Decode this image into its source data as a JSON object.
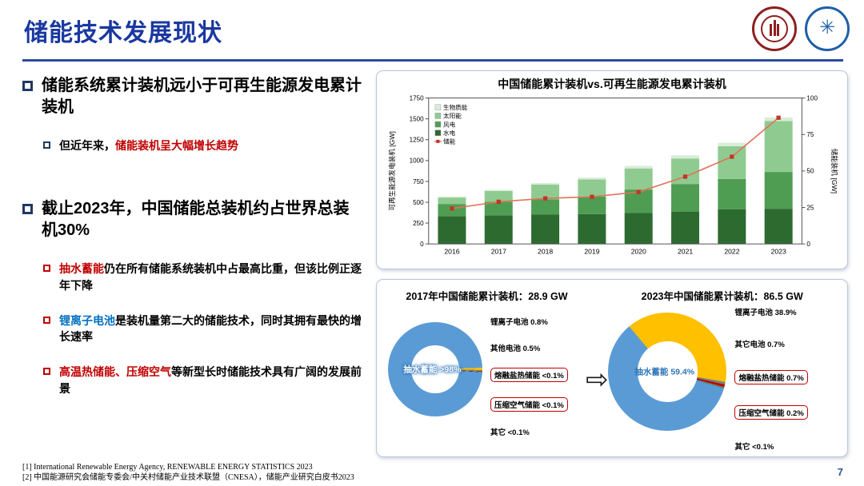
{
  "slide": {
    "title": "储能技术发展现状",
    "page_number": "7",
    "footnotes": [
      "[1] International Renewable Energy Agency, RENEWABLE ENERGY STATISTICS 2023",
      "[2] 中国能源研究会储能专委会/中关村储能产业技术联盟（CNESA），储能产业研究白皮书2023"
    ],
    "logos": {
      "left": "PEKING UNIVERSITY 1898",
      "right": "华中科技大学"
    },
    "colors": {
      "title": "#1a38a0",
      "accent_red": "#c00000",
      "accent_blue": "#0070c0",
      "page_number": "#2e5496",
      "panel_border": "#b9c6dd"
    }
  },
  "bullets": [
    {
      "level": 1,
      "marker_color": "#1f3864",
      "segments": [
        {
          "text": "储能系统累计装机远小于可再生能源发电累计装机",
          "color": "#000000"
        }
      ]
    },
    {
      "level": 2,
      "marker_color": "#1f3864",
      "segments": [
        {
          "text": "但近年来，",
          "color": "#000000"
        },
        {
          "text": "储能装机呈大幅增长趋势",
          "color": "#c00000"
        }
      ]
    },
    {
      "level": 1,
      "marker_color": "#1f3864",
      "gap_before": true,
      "segments": [
        {
          "text": "截止2023年，中国储能总装机约占世界总装机30%",
          "color": "#000000"
        }
      ]
    },
    {
      "level": 2,
      "marker_color": "#c00000",
      "segments": [
        {
          "text": "抽水蓄能",
          "color": "#c00000"
        },
        {
          "text": "仍在所有储能系统装机中占最高比重，但该比例正逐年下降",
          "color": "#000000"
        }
      ]
    },
    {
      "level": 2,
      "marker_color": "#c00000",
      "segments": [
        {
          "text": "锂离子电池",
          "color": "#0070c0"
        },
        {
          "text": "是装机量第二大的储能技术，同时其拥有最快的增长速率",
          "color": "#000000"
        }
      ]
    },
    {
      "level": 2,
      "marker_color": "#c00000",
      "segments": [
        {
          "text": "高温热储能、压缩空气",
          "color": "#c00000"
        },
        {
          "text": "等新型长时储能技术具有广阔的发展前景",
          "color": "#000000"
        }
      ]
    }
  ],
  "donut_section": {
    "arrow_icon": "⇨"
  },
  "chart_data": [
    {
      "type": "bar",
      "title": "中国储能累计装机vs.可再生能源发电累计装机",
      "categories": [
        "2016",
        "2017",
        "2018",
        "2019",
        "2020",
        "2021",
        "2022",
        "2023"
      ],
      "stacked_series": [
        {
          "name": "水电",
          "color": "#2d6a30",
          "values": [
            332,
            341,
            352,
            358,
            370,
            391,
            414,
            422
          ]
        },
        {
          "name": "风电",
          "color": "#4f9d53",
          "values": [
            147,
            164,
            184,
            210,
            282,
            328,
            365,
            441
          ]
        },
        {
          "name": "太阳能",
          "color": "#8fcb90",
          "values": [
            77,
            130,
            175,
            205,
            253,
            306,
            393,
            610
          ]
        },
        {
          "name": "生物质能",
          "color": "#d8ecd8",
          "values": [
            12,
            15,
            18,
            23,
            30,
            38,
            41,
            44
          ]
        }
      ],
      "line_series": {
        "name": "储能",
        "color": "#e0745a",
        "marker_color": "#c23528",
        "values": [
          24.3,
          28.9,
          31.2,
          32.3,
          35.6,
          46.1,
          59.8,
          86.5
        ],
        "axis": "right"
      },
      "left_axis": {
        "label": "可再生能源发电装机 [GW]",
        "min": 0,
        "max": 1750,
        "ticks": [
          0,
          250,
          500,
          750,
          1000,
          1250,
          1500,
          1750
        ]
      },
      "right_axis": {
        "label": "储能装机 [GW]",
        "min": 0,
        "max": 100,
        "ticks": [
          0,
          25,
          50,
          75,
          100
        ]
      },
      "legend_order": [
        "生物质能",
        "太阳能",
        "风电",
        "水电",
        "储能"
      ],
      "grid": false,
      "legend_position": "top-left"
    },
    {
      "type": "pie",
      "title": "2017年中国储能累计装机：28.9 GW",
      "center_label": "抽水蓄能 >98%",
      "center_label_color": "#ffffff",
      "center_label_on_ring": true,
      "start_deg": 88,
      "slices": [
        {
          "name": "抽水蓄能",
          "value": 98.0,
          "display": ">98%",
          "color": "#5b9bd5"
        },
        {
          "name": "锂离子电池",
          "value": 0.8,
          "display": "0.8%",
          "color": "#ffc000"
        },
        {
          "name": "其他电池",
          "value": 0.5,
          "display": "0.5%",
          "color": "#7f7f7f"
        },
        {
          "name": "熔融盐热储能",
          "value": 0.1,
          "display": "<0.1%",
          "color": "#c00000",
          "highlight": true
        },
        {
          "name": "压缩空气储能",
          "value": 0.1,
          "display": "<0.1%",
          "color": "#70ad47",
          "highlight": true
        },
        {
          "name": "其它",
          "value": 0.1,
          "display": "<0.1%",
          "color": "#264478"
        }
      ]
    },
    {
      "type": "pie",
      "title": "2023年中国储能累计装机：86.5 GW",
      "center_label": "抽水蓄能 59.4%",
      "center_label_color": "#2e75b6",
      "center_label_on_ring": false,
      "start_deg": 320,
      "slices": [
        {
          "name": "抽水蓄能",
          "value": 59.4,
          "display": "59.4%",
          "color": "#5b9bd5"
        },
        {
          "name": "锂离子电池",
          "value": 38.9,
          "display": "38.9%",
          "color": "#ffc000"
        },
        {
          "name": "其它电池",
          "value": 0.7,
          "display": "0.7%",
          "color": "#7f7f7f"
        },
        {
          "name": "熔融盐热储能",
          "value": 0.7,
          "display": "0.7%",
          "color": "#c00000",
          "highlight": true
        },
        {
          "name": "压缩空气储能",
          "value": 0.2,
          "display": "0.2%",
          "color": "#70ad47",
          "highlight": true
        },
        {
          "name": "其它",
          "value": 0.1,
          "display": "<0.1%",
          "color": "#264478"
        }
      ]
    }
  ]
}
